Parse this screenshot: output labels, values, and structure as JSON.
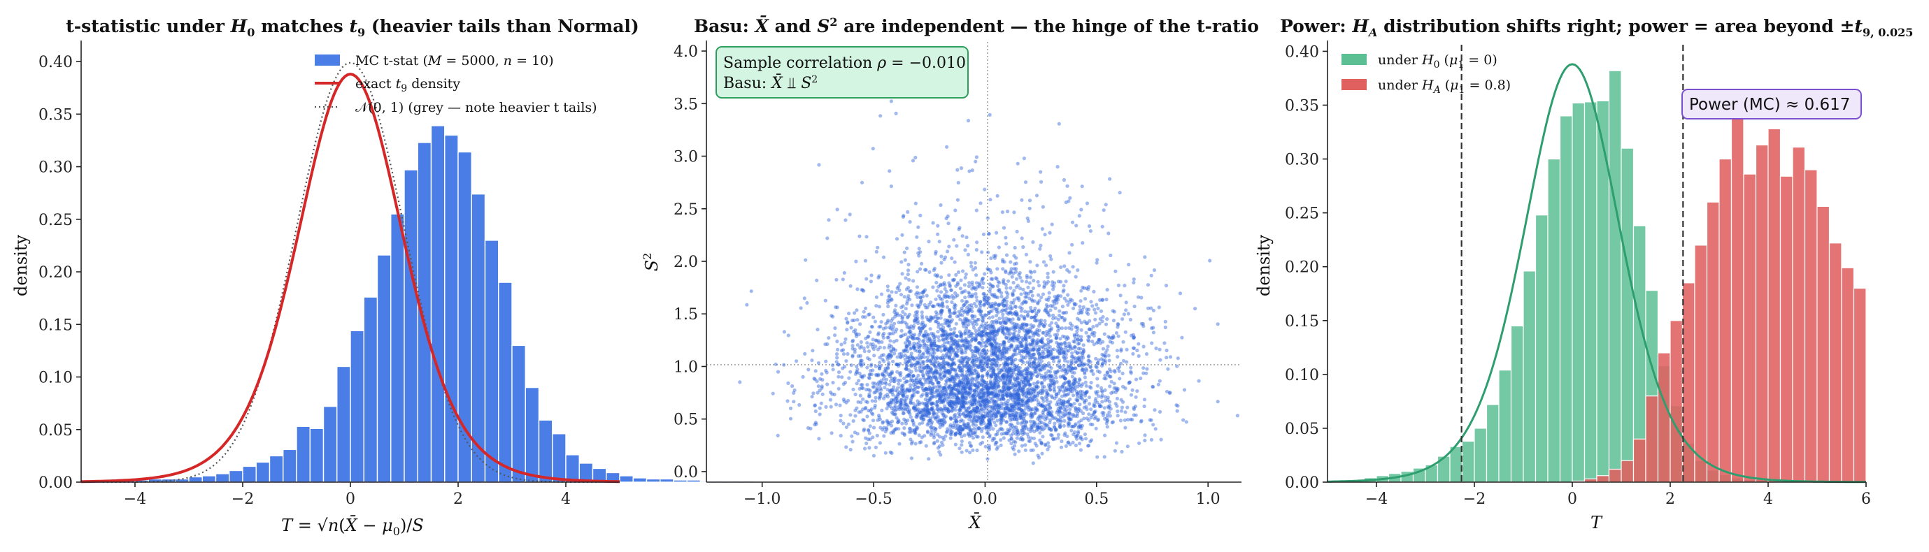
{
  "chart_data": [
    {
      "type": "histogram",
      "title": "t-statistic under H₀ matches t₉ (heavier tails than Normal)",
      "xlabel": "T = √n(X̄ − μ₀)/S",
      "ylabel": "density",
      "xlim": [
        -5,
        5
      ],
      "ylim": [
        0,
        0.42
      ],
      "xticks": [
        -4,
        -2,
        0,
        2,
        4
      ],
      "yticks": [
        0.0,
        0.05,
        0.1,
        0.15,
        0.2,
        0.25,
        0.3,
        0.35,
        0.4
      ],
      "bin_start": -5.0,
      "bin_width": 0.25,
      "values": [
        0.002,
        0.002,
        0.002,
        0.002,
        0.002,
        0.003,
        0.003,
        0.003,
        0.005,
        0.006,
        0.008,
        0.011,
        0.015,
        0.019,
        0.025,
        0.031,
        0.053,
        0.051,
        0.072,
        0.11,
        0.144,
        0.176,
        0.216,
        0.255,
        0.297,
        0.323,
        0.339,
        0.33,
        0.314,
        0.274,
        0.23,
        0.19,
        0.13,
        0.09,
        0.059,
        0.046,
        0.026,
        0.018,
        0.013,
        0.009,
        0.006,
        0.004,
        0.003,
        0.003,
        0.002,
        0.002,
        0.001,
        0.001,
        0.001,
        0.001
      ],
      "legend": {
        "position": "top-right",
        "entries": [
          "MC t-stat  (M = 5000, n = 10)",
          "exact  t₉  density",
          "𝒩(0, 1)  (grey — note heavier t tails)"
        ]
      },
      "curves": [
        {
          "name": "exact  t₉  density",
          "df": 9,
          "color": "#d62728"
        },
        {
          "name": "𝒩(0, 1)  (grey — note heavier t tails)",
          "color": "#555555",
          "style": "dotted"
        }
      ],
      "bar_color": "#4a7ee6",
      "grid": false
    },
    {
      "type": "scatter",
      "title": "Basu: X̄ and S² are independent — the hinge of the t-ratio",
      "xlabel": "X̄",
      "ylabel": "S²",
      "xlim": [
        -1.25,
        1.15
      ],
      "ylim": [
        -0.1,
        4.1
      ],
      "xticks": [
        -1.0,
        -0.5,
        0.0,
        0.5,
        1.0
      ],
      "yticks": [
        0.0,
        0.5,
        1.0,
        1.5,
        2.0,
        2.5,
        3.0,
        3.5,
        4.0
      ],
      "n_points": 5000,
      "reference_lines": {
        "x": 0,
        "y": 1
      },
      "annotation": [
        "Sample correlation ρ = −0.010",
        "Basu: X̄ ⫫ S²"
      ],
      "point_color": "#2f63d9",
      "box_color": "#d4f5e2",
      "box_border": "#2e9e5c",
      "grid": false
    },
    {
      "type": "histogram",
      "title": "Power: H_A distribution shifts right; power = area beyond ±t₉,₀.₀₂₅",
      "xlabel": "T",
      "ylabel": "density",
      "xlim": [
        -5,
        6
      ],
      "ylim": [
        0,
        0.41
      ],
      "xticks": [
        -4,
        -2,
        0,
        2,
        4,
        6
      ],
      "yticks": [
        0.0,
        0.05,
        0.1,
        0.15,
        0.2,
        0.25,
        0.3,
        0.35,
        0.4
      ],
      "bin_start": -4.5,
      "bin_width": 0.25,
      "series": [
        {
          "name": "under H₀ (μ₁ = 0)",
          "color": "#5cbf94",
          "values": [
            0.002,
            0.004,
            0.006,
            0.008,
            0.01,
            0.013,
            0.016,
            0.024,
            0.033,
            0.038,
            0.05,
            0.072,
            0.104,
            0.145,
            0.196,
            0.248,
            0.3,
            0.34,
            0.352,
            0.353,
            0.354,
            0.382,
            0.31,
            0.238,
            0.178,
            0.108,
            0.071,
            0.036,
            0.02,
            0.011,
            0.007,
            0.004,
            0.002,
            0.002,
            0.001,
            0.001,
            0.001
          ]
        },
        {
          "name": "under H_A (μ₁ = 0.8)",
          "color": "#e06060",
          "values": [
            0,
            0,
            0,
            0,
            0,
            0,
            0,
            0,
            0,
            0,
            0,
            0,
            0,
            0,
            0,
            0,
            0,
            0,
            0.001,
            0.003,
            0.006,
            0.012,
            0.02,
            0.04,
            0.08,
            0.12,
            0.15,
            0.185,
            0.22,
            0.26,
            0.3,
            0.339,
            0.286,
            0.313,
            0.328,
            0.284,
            0.311,
            0.29,
            0.256,
            0.222,
            0.199,
            0.18,
            0.161,
            0.12,
            0.1,
            0.078,
            0.066,
            0.058,
            0.05,
            0.04,
            0.034,
            0.029,
            0.021,
            0.016,
            0.011,
            0.009,
            0.007,
            0.004,
            0.003,
            0.002,
            0.001,
            0.001,
            0.001,
            0.001
          ]
        }
      ],
      "critical_value": 2.262,
      "annotation": "Power (MC) ≈ 0.617",
      "box_color": "#eee8fa",
      "box_border": "#7b4fd0",
      "h0_curve_color": "#2e9e6e",
      "grid": false
    }
  ]
}
